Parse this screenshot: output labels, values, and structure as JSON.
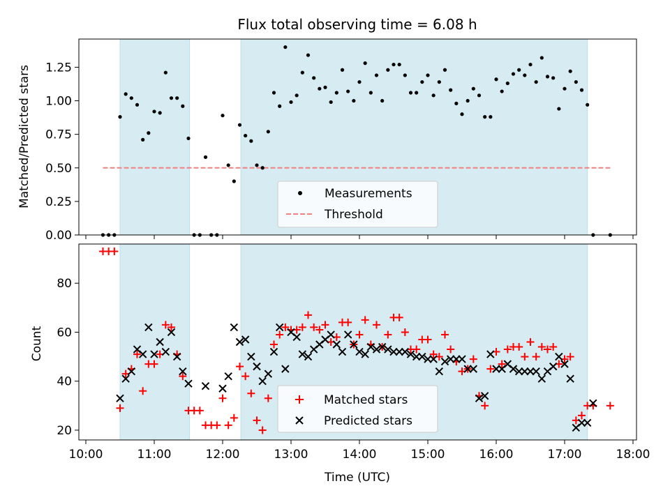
{
  "colors": {
    "shade": "#add8e6",
    "threshold": "#f08080",
    "matched": "#ff0000",
    "predicted": "#000000",
    "measurement": "#000000"
  },
  "chart_data": [
    {
      "type": "scatter",
      "title": "Flux total observing time = 6.08 h",
      "xlabel": "",
      "ylabel": "Matched/Predicted stars",
      "xlim": [
        "10:00",
        "18:00"
      ],
      "ylim": [
        0,
        1.46
      ],
      "ytick_labels": [
        "0.00",
        "0.25",
        "0.50",
        "0.75",
        "1.00",
        "1.25"
      ],
      "shaded_intervals": [
        [
          "10:30",
          "11:31"
        ],
        [
          "12:16",
          "17:20"
        ]
      ],
      "threshold": {
        "name": "Threshold",
        "y": 0.5,
        "x_range": [
          "10:15",
          "17:40"
        ]
      },
      "legend": {
        "placement": "lower center",
        "entries": [
          "Measurements",
          "Threshold"
        ]
      },
      "series": [
        {
          "name": "Measurements",
          "x": [
            "10:15",
            "10:20",
            "10:25",
            "10:30",
            "10:35",
            "10:40",
            "10:45",
            "10:50",
            "10:55",
            "11:00",
            "11:05",
            "11:10",
            "11:15",
            "11:20",
            "11:25",
            "11:30",
            "11:35",
            "11:40",
            "11:45",
            "11:50",
            "11:55",
            "12:00",
            "12:05",
            "12:10",
            "12:15",
            "12:20",
            "12:25",
            "12:30",
            "12:35",
            "12:40",
            "12:45",
            "12:50",
            "12:55",
            "13:00",
            "13:05",
            "13:10",
            "13:15",
            "13:20",
            "13:25",
            "13:30",
            "13:35",
            "13:40",
            "13:45",
            "13:50",
            "13:55",
            "14:00",
            "14:05",
            "14:10",
            "14:15",
            "14:20",
            "14:25",
            "14:30",
            "14:35",
            "14:40",
            "14:45",
            "14:50",
            "14:55",
            "15:00",
            "15:05",
            "15:10",
            "15:15",
            "15:20",
            "15:25",
            "15:30",
            "15:35",
            "15:40",
            "15:45",
            "15:50",
            "15:55",
            "16:00",
            "16:05",
            "16:10",
            "16:15",
            "16:20",
            "16:25",
            "16:30",
            "16:35",
            "16:40",
            "16:45",
            "16:50",
            "16:55",
            "17:00",
            "17:05",
            "17:10",
            "17:15",
            "17:20",
            "17:25",
            "17:40"
          ],
          "y": [
            0,
            0,
            0,
            0.88,
            1.05,
            1.02,
            0.97,
            0.71,
            0.76,
            0.92,
            0.91,
            1.21,
            1.02,
            1.02,
            0.96,
            0.72,
            0,
            0,
            0.58,
            0,
            0,
            0.89,
            0.52,
            0.4,
            0.82,
            0.74,
            0.7,
            0.52,
            0.5,
            0.77,
            1.06,
            0.96,
            1.4,
            0.99,
            1.04,
            1.21,
            1.34,
            1.17,
            1.09,
            1.1,
            0.99,
            1.06,
            1.23,
            1.07,
            1.0,
            1.14,
            1.28,
            1.06,
            1.19,
            1.0,
            1.23,
            1.27,
            1.27,
            1.19,
            1.06,
            1.06,
            1.14,
            1.19,
            1.04,
            1.14,
            1.23,
            1.08,
            0.98,
            0.9,
            1.0,
            1.09,
            1.04,
            0.88,
            0.88,
            1.16,
            1.07,
            1.13,
            1.2,
            1.23,
            1.19,
            1.27,
            1.14,
            1.32,
            1.18,
            1.17,
            0.94,
            1.09,
            1.22,
            1.14,
            1.08,
            0.97,
            0,
            0
          ]
        }
      ]
    },
    {
      "type": "scatter",
      "title": "",
      "xlabel": "Time (UTC)",
      "ylabel": "Count",
      "xlim": [
        "10:00",
        "18:00"
      ],
      "xtick_labels": [
        "10:00",
        "11:00",
        "12:00",
        "13:00",
        "14:00",
        "15:00",
        "16:00",
        "17:00",
        "18:00"
      ],
      "ylim": [
        16,
        96
      ],
      "ytick_labels": [
        "20",
        "40",
        "60",
        "80"
      ],
      "shaded_intervals": [
        [
          "10:30",
          "11:31"
        ],
        [
          "12:16",
          "17:20"
        ]
      ],
      "legend": {
        "placement": "lower center",
        "entries": [
          "Matched stars",
          "Predicted stars"
        ]
      },
      "series": [
        {
          "name": "Matched stars",
          "x": [
            "10:15",
            "10:20",
            "10:25",
            "10:30",
            "10:35",
            "10:40",
            "10:45",
            "10:50",
            "10:55",
            "11:00",
            "11:05",
            "11:10",
            "11:15",
            "11:20",
            "11:25",
            "11:30",
            "11:35",
            "11:40",
            "11:45",
            "11:50",
            "11:55",
            "12:00",
            "12:05",
            "12:10",
            "12:15",
            "12:20",
            "12:25",
            "12:30",
            "12:35",
            "12:40",
            "12:45",
            "12:50",
            "12:55",
            "13:00",
            "13:05",
            "13:10",
            "13:15",
            "13:20",
            "13:25",
            "13:30",
            "13:35",
            "13:40",
            "13:45",
            "13:50",
            "13:55",
            "14:00",
            "14:05",
            "14:10",
            "14:15",
            "14:20",
            "14:25",
            "14:30",
            "14:35",
            "14:40",
            "14:45",
            "14:50",
            "14:55",
            "15:00",
            "15:05",
            "15:10",
            "15:15",
            "15:20",
            "15:25",
            "15:30",
            "15:35",
            "15:40",
            "15:45",
            "15:50",
            "15:55",
            "16:00",
            "16:05",
            "16:10",
            "16:15",
            "16:20",
            "16:25",
            "16:30",
            "16:35",
            "16:40",
            "16:45",
            "16:50",
            "16:55",
            "17:00",
            "17:05",
            "17:10",
            "17:15",
            "17:20",
            "17:25",
            "17:40"
          ],
          "y": [
            93,
            93,
            93,
            29,
            43,
            45,
            51,
            36,
            47,
            47,
            51,
            63,
            62,
            51,
            42,
            28,
            28,
            28,
            22,
            22,
            22,
            33,
            22,
            25,
            46,
            42,
            35,
            24,
            20,
            33,
            55,
            59,
            62,
            61,
            61,
            62,
            67,
            62,
            61,
            63,
            56,
            58,
            64,
            64,
            55,
            59,
            65,
            55,
            63,
            54,
            59,
            66,
            66,
            60,
            53,
            53,
            57,
            57,
            51,
            50,
            59,
            53,
            48,
            44,
            45,
            49,
            34,
            30,
            45,
            52,
            47,
            53,
            54,
            54,
            50,
            56,
            50,
            54,
            53,
            54,
            47,
            49,
            50,
            24,
            26,
            30,
            30,
            30
          ]
        },
        {
          "name": "Predicted stars",
          "x": [
            "10:30",
            "10:35",
            "10:40",
            "10:45",
            "10:50",
            "10:55",
            "11:00",
            "11:05",
            "11:10",
            "11:15",
            "11:20",
            "11:25",
            "11:30",
            "11:45",
            "12:00",
            "12:05",
            "12:10",
            "12:15",
            "12:20",
            "12:25",
            "12:30",
            "12:35",
            "12:40",
            "12:45",
            "12:50",
            "12:55",
            "13:00",
            "13:05",
            "13:10",
            "13:15",
            "13:20",
            "13:25",
            "13:30",
            "13:35",
            "13:40",
            "13:45",
            "13:50",
            "13:55",
            "14:00",
            "14:05",
            "14:10",
            "14:15",
            "14:20",
            "14:25",
            "14:30",
            "14:35",
            "14:40",
            "14:45",
            "14:50",
            "14:55",
            "15:00",
            "15:05",
            "15:10",
            "15:15",
            "15:20",
            "15:25",
            "15:30",
            "15:35",
            "15:40",
            "15:45",
            "15:50",
            "15:55",
            "16:00",
            "16:05",
            "16:10",
            "16:15",
            "16:20",
            "16:25",
            "16:30",
            "16:35",
            "16:40",
            "16:45",
            "16:50",
            "16:55",
            "17:00",
            "17:05",
            "17:10",
            "17:15",
            "17:20",
            "17:25"
          ],
          "y": [
            33,
            41,
            44,
            53,
            51,
            62,
            51,
            56,
            52,
            60,
            50,
            44,
            39,
            38,
            37,
            42,
            62,
            56,
            57,
            50,
            46,
            40,
            43,
            52,
            62,
            45,
            60,
            58,
            51,
            50,
            53,
            55,
            57,
            59,
            55,
            52,
            59,
            55,
            52,
            51,
            54,
            53,
            54,
            53,
            52,
            52,
            52,
            51,
            50,
            50,
            49,
            49,
            44,
            48,
            49,
            49,
            49,
            45,
            45,
            33,
            34,
            51,
            45,
            45,
            47,
            45,
            44,
            44,
            44,
            44,
            41,
            44,
            46,
            50,
            47,
            41,
            21,
            23,
            23,
            31
          ]
        }
      ]
    }
  ]
}
